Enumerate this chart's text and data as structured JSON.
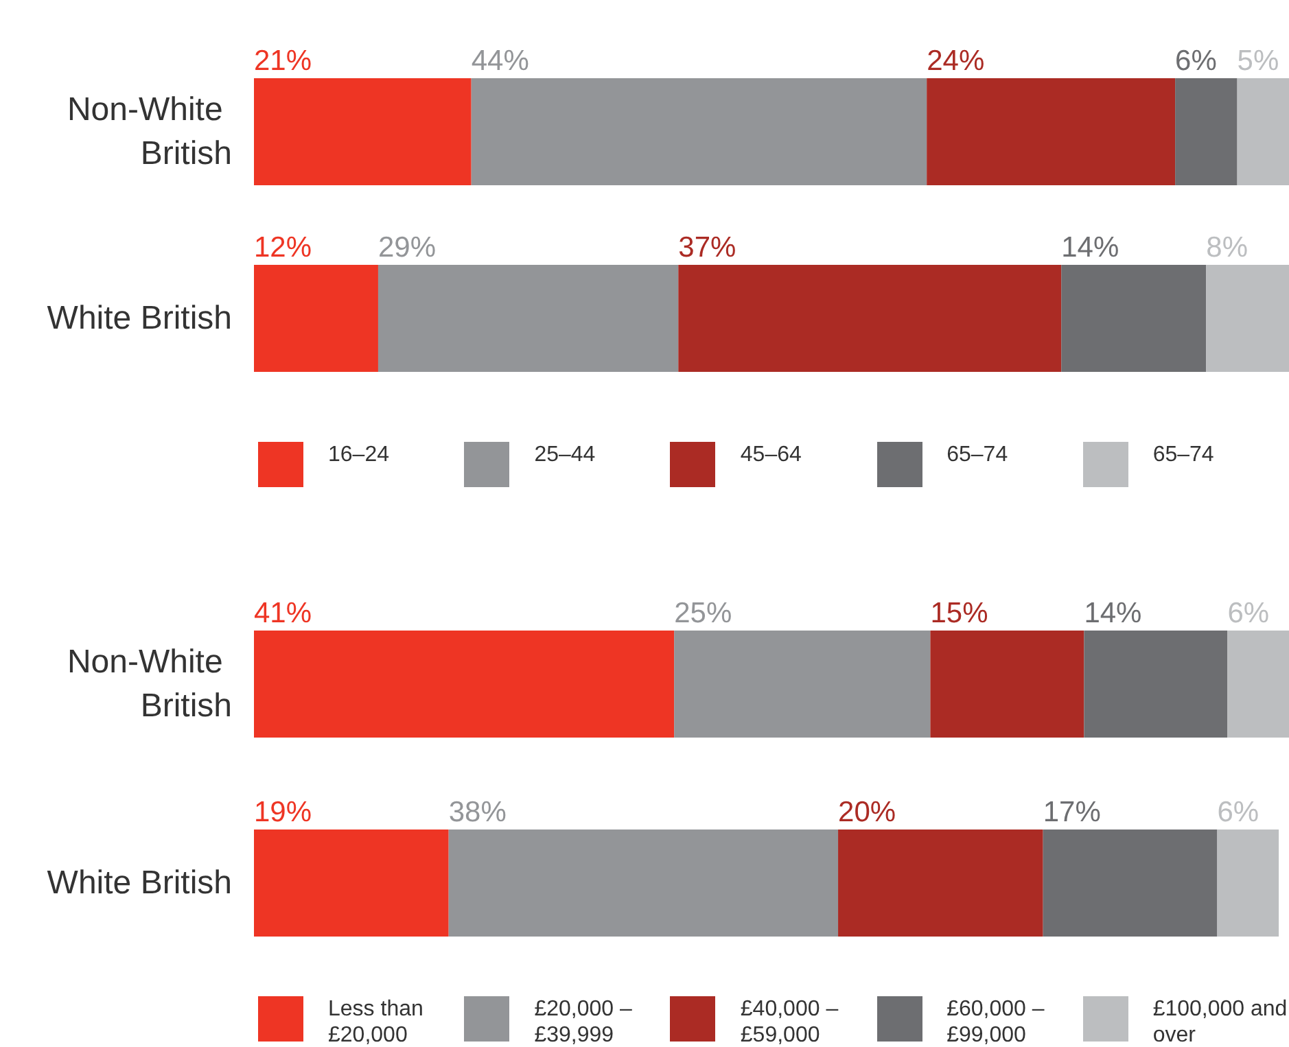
{
  "chart_data": [
    {
      "type": "bar",
      "orientation": "horizontal",
      "stacked": true,
      "categories": [
        "Non-White British",
        "White British"
      ],
      "tick_labels": "y",
      "legend": "bottom",
      "series": [
        {
          "name": "16–24",
          "color": "#ee3524",
          "values": [
            21,
            12
          ],
          "value_labels": [
            "21%",
            "12%"
          ]
        },
        {
          "name": "25–44",
          "color": "#939598",
          "values": [
            44,
            29
          ],
          "value_labels": [
            "44%",
            "29%"
          ]
        },
        {
          "name": "45–64",
          "color": "#ab2b24",
          "values": [
            24,
            37
          ],
          "value_labels": [
            "24%",
            "37%"
          ]
        },
        {
          "name": "65–74",
          "color": "#6d6e71",
          "values": [
            6,
            14
          ],
          "value_labels": [
            "6%",
            "14%"
          ]
        },
        {
          "name": "65–74",
          "color": "#bcbec0",
          "values": [
            5,
            8
          ],
          "value_labels": [
            "5%",
            "8%"
          ]
        }
      ]
    },
    {
      "type": "bar",
      "orientation": "horizontal",
      "stacked": true,
      "categories": [
        "Non-White British",
        "White British"
      ],
      "tick_labels": "y",
      "legend": "bottom",
      "series": [
        {
          "name": "Less than £20,000",
          "color": "#ee3524",
          "values": [
            41,
            19
          ],
          "value_labels": [
            "41%",
            "19%"
          ]
        },
        {
          "name": "£20,000 – £39,999",
          "color": "#939598",
          "values": [
            25,
            38
          ],
          "value_labels": [
            "25%",
            "38%"
          ]
        },
        {
          "name": "£40,000 – £59,000",
          "color": "#ab2b24",
          "values": [
            15,
            20
          ],
          "value_labels": [
            "15%",
            "20%"
          ]
        },
        {
          "name": "£60,000 – £99,000",
          "color": "#6d6e71",
          "values": [
            14,
            17
          ],
          "value_labels": [
            "14%",
            "17%"
          ]
        },
        {
          "name": "£100,000 and over",
          "color": "#bcbec0",
          "values": [
            6,
            6
          ],
          "value_labels": [
            "6%",
            "6%"
          ]
        }
      ]
    }
  ]
}
